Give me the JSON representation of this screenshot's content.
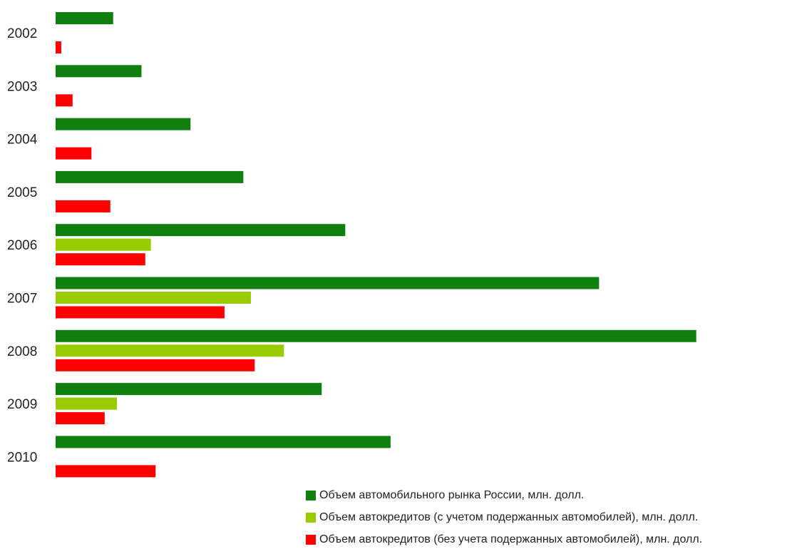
{
  "chart_data": {
    "type": "bar",
    "orientation": "horizontal",
    "title": "",
    "xlabel": "",
    "ylabel": "",
    "grid": false,
    "legend_position": "bottom-right",
    "xlim": [
      0,
      68000
    ],
    "categories": [
      "2002",
      "2003",
      "2004",
      "2005",
      "2006",
      "2007",
      "2008",
      "2009",
      "2010"
    ],
    "series": [
      {
        "name": "Объем автомобильного рынка России, млн. долл.",
        "color": "#0f7f0f",
        "values": [
          6100,
          9100,
          14300,
          19900,
          30700,
          57600,
          67900,
          28200,
          35500
        ]
      },
      {
        "name": "Объем автокредитов (с учетом подержанных автомобилей), млн. долл.",
        "color": "#99cc00",
        "values": [
          null,
          null,
          null,
          null,
          10100,
          20700,
          24200,
          6500,
          null
        ]
      },
      {
        "name": "Объем автокредитов (без учета подержанных автомобилей), млн. долл.",
        "color": "#ff0000",
        "values": [
          600,
          1800,
          3800,
          5800,
          9500,
          17900,
          21100,
          5200,
          10600
        ]
      }
    ]
  }
}
